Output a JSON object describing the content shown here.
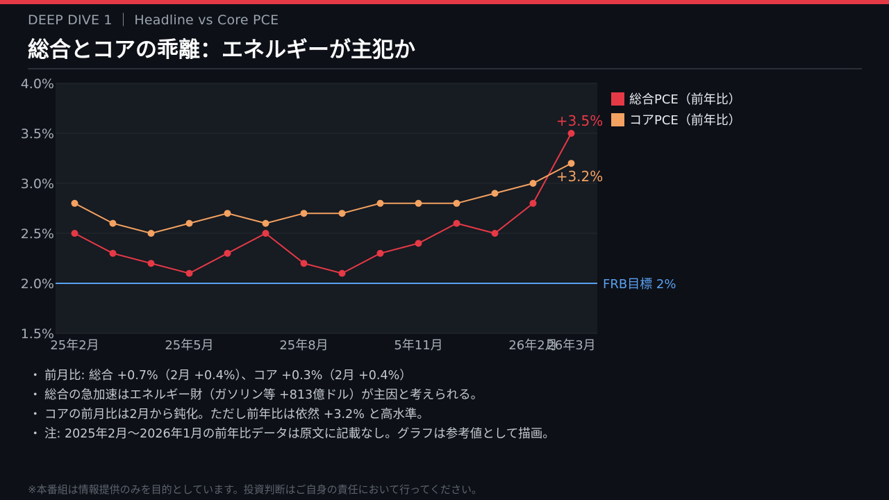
{
  "header": {
    "kicker": "DEEP DIVE 1 ｜ Headline vs Core PCE",
    "title": "総合とコアの乖離：エネルギーが主犯か"
  },
  "colors": {
    "accent": "#e63946",
    "headline": "#e63946",
    "core": "#f4a261",
    "target": "#5aa0f0",
    "background": "#0d1017",
    "plot_background": "#171b22"
  },
  "chart_data": {
    "type": "line",
    "x": [
      "25年2月",
      "25年3月",
      "25年4月",
      "25年5月",
      "25年6月",
      "25年7月",
      "25年8月",
      "25年9月",
      "25年10月",
      "5年11月",
      "25年12月",
      "26年1月",
      "26年2月",
      "26年3月"
    ],
    "tick_labels": [
      {
        "index": 0,
        "label": "25年2月"
      },
      {
        "index": 3,
        "label": "25年5月"
      },
      {
        "index": 6,
        "label": "25年8月"
      },
      {
        "index": 9,
        "label": "5年11月"
      },
      {
        "index": 12,
        "label": "26年2月"
      },
      {
        "index": 13,
        "label": "26年3月"
      }
    ],
    "series": [
      {
        "name": "総合PCE（前年比）",
        "key": "headline",
        "values": [
          2.5,
          2.3,
          2.2,
          2.1,
          2.3,
          2.5,
          2.2,
          2.1,
          2.3,
          2.4,
          2.6,
          2.5,
          2.8,
          3.5
        ],
        "end_label": "+3.5%"
      },
      {
        "name": "コアPCE（前年比）",
        "key": "core",
        "values": [
          2.8,
          2.6,
          2.5,
          2.6,
          2.7,
          2.6,
          2.7,
          2.7,
          2.8,
          2.8,
          2.8,
          2.9,
          3.0,
          3.2
        ],
        "end_label": "+3.2%"
      }
    ],
    "reference_line": {
      "value": 2.0,
      "label": "FRB目標 2%"
    },
    "ylim": [
      1.5,
      4.0
    ],
    "yticks": [
      1.5,
      2.0,
      2.5,
      3.0,
      3.5,
      4.0
    ],
    "ytick_labels": [
      "1.5%",
      "2.0%",
      "2.5%",
      "3.0%",
      "3.5%",
      "4.0%"
    ],
    "grid": true,
    "legend": "top-right"
  },
  "notes": [
    "前月比: 総合 +0.7%（2月 +0.4%）、コア +0.3%（2月 +0.4%）",
    "総合の急加速はエネルギー財（ガソリン等 +813億ドル）が主因と考えられる。",
    "コアの前月比は2月から鈍化。ただし前年比は依然 +3.2% と高水準。",
    "注: 2025年2月〜2026年1月の前年比データは原文に記載なし。グラフは参考値として描画。"
  ],
  "bullet": "・",
  "footer": "※本番組は情報提供のみを目的としています。投資判断はご自身の責任において行ってください。"
}
